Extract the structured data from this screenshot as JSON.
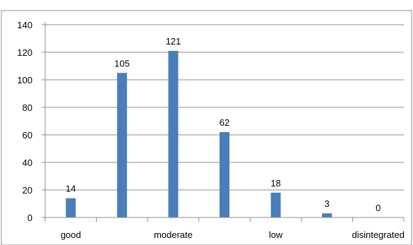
{
  "chart_data": {
    "type": "bar",
    "title": "",
    "xlabel": "",
    "ylabel": "",
    "ylim": [
      0,
      140
    ],
    "yticks": [
      0,
      20,
      40,
      60,
      80,
      100,
      120,
      140
    ],
    "grid": true,
    "legend": "none",
    "categories": [
      "good",
      "",
      "moderate",
      "",
      "low",
      "",
      "disintegrated"
    ],
    "values": [
      14,
      105,
      121,
      62,
      18,
      3,
      0
    ],
    "data_labels": [
      "14",
      "105",
      "121",
      "62",
      "18",
      "3",
      "0"
    ],
    "bar_color": "#4a7ebb",
    "grid_color": "#8c8c8c"
  }
}
